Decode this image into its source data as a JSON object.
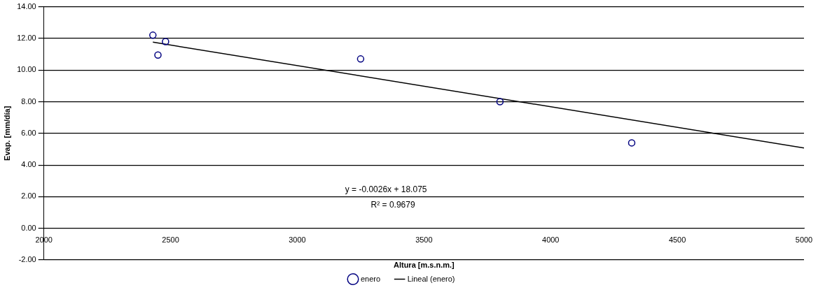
{
  "chart_data": {
    "type": "scatter",
    "xlabel": "Altura [m.s.n.m.]",
    "ylabel": "Evap. [mm/día]",
    "series": [
      {
        "name": "enero",
        "color": "#000080",
        "marker": "circle",
        "x": [
          2430,
          2450,
          2480,
          3250,
          3800,
          4320
        ],
        "values": [
          12.2,
          10.95,
          11.8,
          10.7,
          8.0,
          5.4
        ]
      },
      {
        "name": "Lineal (enero)",
        "type": "line",
        "color": "#000000",
        "marker": "none",
        "line_style": "solid",
        "x": [
          2430,
          5000
        ],
        "values": [
          11.76,
          5.08
        ]
      }
    ],
    "xlim": [
      2000,
      5000
    ],
    "xticks": [
      2000,
      2500,
      3000,
      3500,
      4000,
      4500,
      5000
    ],
    "ylim": [
      -2,
      14
    ],
    "yticks": [
      {
        "value": -2,
        "label": "-2.00"
      },
      {
        "value": 0,
        "label": "0.00"
      },
      {
        "value": 2,
        "label": "2.00"
      },
      {
        "value": 4,
        "label": "4.00"
      },
      {
        "value": 6,
        "label": "6.00"
      },
      {
        "value": 8,
        "label": "8.00"
      },
      {
        "value": 10,
        "label": "10.00"
      },
      {
        "value": 12,
        "label": "12.00"
      },
      {
        "value": 14,
        "label": "14.00"
      }
    ],
    "grid": "y",
    "legend": "bottom",
    "annotations": [
      "y = -0.0026x + 18.075",
      "R² = 0.9679"
    ]
  }
}
